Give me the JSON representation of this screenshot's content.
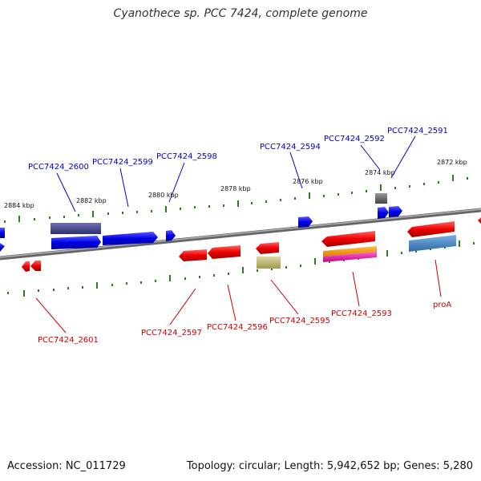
{
  "title": "Cyanothece sp. PCC 7424, complete genome",
  "footer": {
    "accession": "Accession: NC_011729",
    "summary": "Topology: circular; Length: 5,942,652 bp; Genes: 5,280"
  },
  "colors": {
    "forward_label": "#0000cc",
    "reverse_label": "#cc0000",
    "tick": "#2e7d1e",
    "backbone": "#888888"
  },
  "ticks": [
    {
      "label": "2884 kbp"
    },
    {
      "label": "2882 kbp"
    },
    {
      "label": "2880 kbp"
    },
    {
      "label": "2878 kbp"
    },
    {
      "label": "2876 kbp"
    },
    {
      "label": "2874 kbp"
    },
    {
      "label": "2872 kbp"
    }
  ],
  "genes_forward": [
    {
      "label": "PCC7424_2600"
    },
    {
      "label": "PCC7424_2599"
    },
    {
      "label": "PCC7424_2598"
    },
    {
      "label": "PCC7424_2594"
    },
    {
      "label": "PCC7424_2592"
    },
    {
      "label": "PCC7424_2591"
    }
  ],
  "genes_reverse": [
    {
      "label": "PCC7424_2601"
    },
    {
      "label": "PCC7424_2597"
    },
    {
      "label": "PCC7424_2596"
    },
    {
      "label": "PCC7424_2595"
    },
    {
      "label": "PCC7424_2593"
    },
    {
      "label": "proA"
    }
  ]
}
